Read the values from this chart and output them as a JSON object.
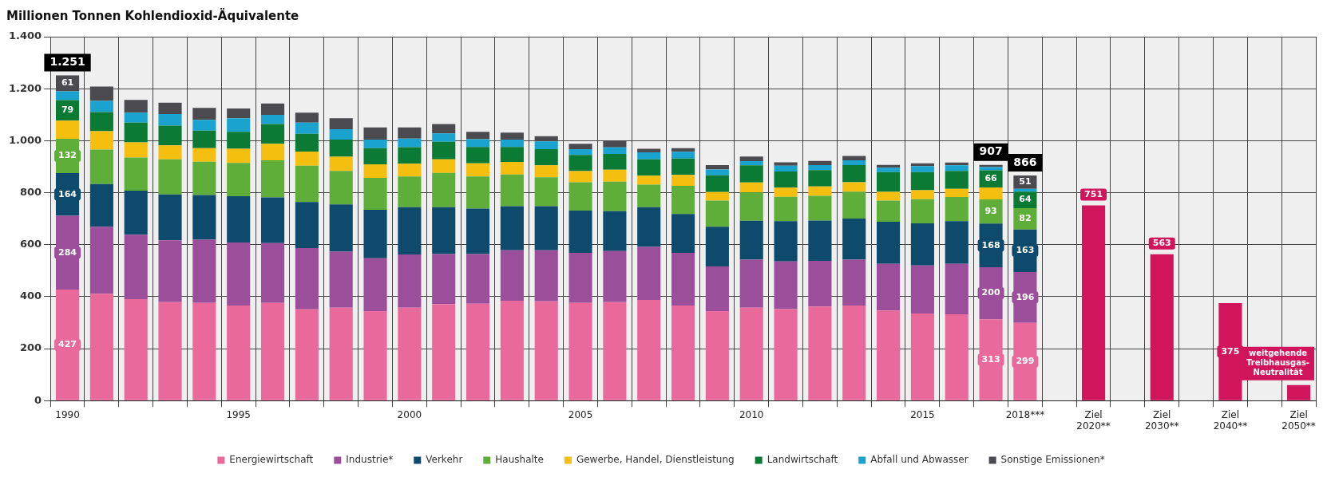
{
  "chart_data": {
    "type": "bar",
    "stacked": true,
    "title": "Millionen Tonnen Kohlendioxid-Äquivalente",
    "categories": [
      "1990",
      null,
      null,
      null,
      null,
      "1995",
      null,
      null,
      null,
      null,
      "2000",
      null,
      null,
      null,
      null,
      "2005",
      null,
      null,
      null,
      null,
      "2010",
      null,
      null,
      null,
      null,
      "2015",
      null,
      null,
      "2018***",
      null,
      "Ziel 2020**",
      null,
      "Ziel 2030**",
      null,
      "Ziel 2040**",
      null,
      "Ziel 2050**"
    ],
    "ylim": [
      0,
      1400
    ],
    "yticks": [
      {
        "value": 0,
        "label": "0"
      },
      {
        "value": 200,
        "label": "200"
      },
      {
        "value": 400,
        "label": "400"
      },
      {
        "value": 600,
        "label": "600"
      },
      {
        "value": 800,
        "label": "800"
      },
      {
        "value": 1000,
        "label": "1.000"
      },
      {
        "value": 1200,
        "label": "1.200"
      },
      {
        "value": 1400,
        "label": "1.400"
      }
    ],
    "grid": true,
    "legend": "bottom",
    "series": [
      {
        "name": "Energiewirtschaft",
        "color": "#e8699a",
        "values": [
          427,
          411,
          390,
          379,
          376,
          366,
          376,
          351,
          357,
          344,
          357,
          371,
          373,
          384,
          382,
          376,
          379,
          387,
          366,
          344,
          357,
          352,
          362,
          366,
          347,
          335,
          332,
          313,
          299,
          null,
          null,
          null,
          null,
          null,
          null,
          null,
          null
        ],
        "value_labels": [
          "427",
          null,
          null,
          null,
          null,
          null,
          null,
          null,
          null,
          null,
          null,
          null,
          null,
          null,
          null,
          null,
          null,
          null,
          null,
          null,
          null,
          null,
          null,
          null,
          null,
          null,
          null,
          "313",
          "299",
          null,
          null,
          null,
          null,
          null,
          null,
          null,
          null
        ]
      },
      {
        "name": "Industrie*",
        "color": "#9b4f9b",
        "values": [
          284,
          258,
          248,
          238,
          243,
          242,
          230,
          236,
          216,
          204,
          205,
          193,
          191,
          194,
          196,
          192,
          196,
          204,
          202,
          172,
          185,
          183,
          176,
          176,
          179,
          185,
          194,
          200,
          196,
          null,
          null,
          null,
          null,
          null,
          null,
          null,
          null
        ],
        "value_labels": [
          "284",
          null,
          null,
          null,
          null,
          null,
          null,
          null,
          null,
          null,
          null,
          null,
          null,
          null,
          null,
          null,
          null,
          null,
          null,
          null,
          null,
          null,
          null,
          null,
          null,
          null,
          null,
          "200",
          "196",
          null,
          null,
          null,
          null,
          null,
          null,
          null,
          null
        ]
      },
      {
        "name": "Verkehr",
        "color": "#0d4a6b",
        "values": [
          164,
          164,
          170,
          176,
          172,
          178,
          176,
          177,
          182,
          186,
          182,
          180,
          175,
          170,
          170,
          163,
          154,
          153,
          150,
          153,
          150,
          155,
          155,
          158,
          162,
          162,
          164,
          168,
          163,
          null,
          null,
          null,
          null,
          null,
          null,
          null,
          null
        ],
        "value_labels": [
          "164",
          null,
          null,
          null,
          null,
          null,
          null,
          null,
          null,
          null,
          null,
          null,
          null,
          null,
          null,
          null,
          null,
          null,
          null,
          null,
          null,
          null,
          null,
          null,
          null,
          null,
          null,
          "168",
          "163",
          null,
          null,
          null,
          null,
          null,
          null,
          null,
          null
        ]
      },
      {
        "name": "Haushalte",
        "color": "#5fae3a",
        "values": [
          132,
          133,
          127,
          135,
          128,
          128,
          142,
          140,
          129,
          123,
          118,
          132,
          123,
          122,
          111,
          109,
          113,
          87,
          108,
          100,
          109,
          94,
          95,
          104,
          81,
          93,
          93,
          93,
          82,
          null,
          null,
          null,
          null,
          null,
          null,
          null,
          null
        ],
        "value_labels": [
          "132",
          null,
          null,
          null,
          null,
          null,
          null,
          null,
          null,
          null,
          null,
          null,
          null,
          null,
          null,
          null,
          null,
          null,
          null,
          null,
          null,
          null,
          null,
          null,
          null,
          null,
          null,
          "93",
          "82",
          null,
          null,
          null,
          null,
          null,
          null,
          null,
          null
        ]
      },
      {
        "name": "Gewerbe, Handel, Dienstleistung",
        "color": "#f5bf0f",
        "values": [
          70,
          70,
          58,
          54,
          52,
          55,
          64,
          54,
          54,
          52,
          49,
          52,
          51,
          48,
          46,
          43,
          46,
          34,
          42,
          33,
          38,
          35,
          36,
          36,
          34,
          34,
          32,
          46,
          null,
          null,
          null,
          null,
          null,
          null,
          null,
          null,
          null
        ]
      },
      {
        "name": "Landwirtschaft",
        "color": "#0a7a35",
        "values": [
          79,
          74,
          76,
          76,
          68,
          65,
          76,
          68,
          66,
          62,
          64,
          68,
          63,
          58,
          62,
          62,
          61,
          63,
          63,
          65,
          66,
          62,
          63,
          66,
          76,
          70,
          69,
          66,
          64,
          null,
          null,
          null,
          null,
          null,
          null,
          null,
          null
        ],
        "value_labels": [
          "79",
          null,
          null,
          null,
          null,
          null,
          null,
          null,
          null,
          null,
          null,
          null,
          null,
          null,
          null,
          null,
          null,
          null,
          null,
          null,
          null,
          null,
          null,
          null,
          null,
          null,
          null,
          "66",
          "64",
          null,
          null,
          null,
          null,
          null,
          null,
          null,
          null
        ]
      },
      {
        "name": "Abfall und Abwasser",
        "color": "#1aa3cf",
        "values": [
          34,
          43,
          39,
          44,
          41,
          52,
          35,
          43,
          40,
          33,
          33,
          32,
          30,
          28,
          30,
          22,
          25,
          27,
          26,
          22,
          16,
          23,
          19,
          18,
          17,
          23,
          21,
          12,
          11,
          null,
          null,
          null,
          null,
          null,
          null,
          null,
          null
        ]
      },
      {
        "name": "Sonstige Emissionen*",
        "color": "#4a4a4f",
        "values": [
          61,
          55,
          49,
          44,
          46,
          38,
          44,
          39,
          42,
          47,
          43,
          36,
          28,
          27,
          20,
          21,
          24,
          14,
          14,
          17,
          18,
          13,
          16,
          17,
          11,
          11,
          11,
          9,
          51,
          null,
          null,
          null,
          null,
          null,
          null,
          null,
          null
        ],
        "value_labels": [
          "61",
          null,
          null,
          null,
          null,
          null,
          null,
          null,
          null,
          null,
          null,
          null,
          null,
          null,
          null,
          null,
          null,
          null,
          null,
          null,
          null,
          null,
          null,
          null,
          null,
          null,
          null,
          null,
          "51",
          null,
          null,
          null,
          null,
          null,
          null,
          null,
          null
        ]
      },
      {
        "color": "#d0155a",
        "values": [
          null,
          null,
          null,
          null,
          null,
          null,
          null,
          null,
          null,
          null,
          null,
          null,
          null,
          null,
          null,
          null,
          null,
          null,
          null,
          null,
          null,
          null,
          null,
          null,
          null,
          null,
          null,
          null,
          null,
          null,
          751,
          null,
          563,
          null,
          375,
          null,
          60
        ],
        "value_labels": [
          null,
          null,
          null,
          null,
          null,
          null,
          null,
          null,
          null,
          null,
          null,
          null,
          null,
          null,
          null,
          null,
          null,
          null,
          null,
          null,
          null,
          null,
          null,
          null,
          null,
          null,
          null,
          null,
          null,
          null,
          "751",
          null,
          "563",
          null,
          "375",
          null,
          null
        ]
      }
    ],
    "totals": [
      "1.251",
      null,
      null,
      null,
      null,
      null,
      null,
      null,
      null,
      null,
      null,
      null,
      null,
      null,
      null,
      null,
      null,
      null,
      null,
      null,
      null,
      null,
      null,
      null,
      null,
      null,
      null,
      "907",
      "866",
      null,
      null,
      null,
      null,
      null,
      null,
      null,
      null
    ],
    "annotations": [
      {
        "text": "weitgehende Treibhausgas-Neutralität",
        "x": "Ziel 2050**",
        "y": 60
      }
    ]
  }
}
